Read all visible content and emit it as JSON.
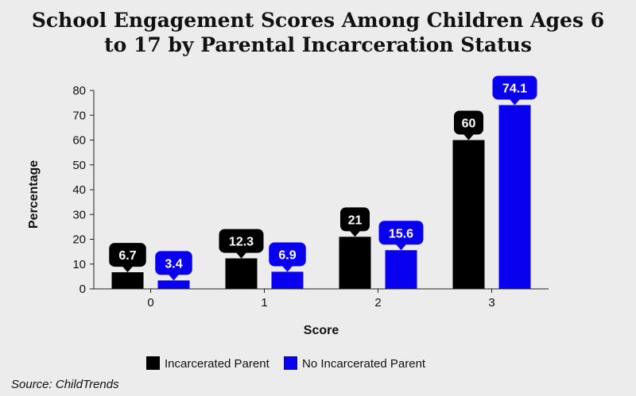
{
  "chart_data": {
    "type": "bar",
    "title": "School Engagement Scores Among Children Ages 6\nto 17 by Parental Incarceration Status",
    "xlabel": "Score",
    "ylabel": "Percentage",
    "categories": [
      "0",
      "1",
      "2",
      "3"
    ],
    "series": [
      {
        "name": "Incarcerated Parent",
        "color": "#000000",
        "values": [
          6.7,
          12.3,
          21,
          60
        ]
      },
      {
        "name": "No Incarcerated Parent",
        "color": "#0a00f0",
        "values": [
          3.4,
          6.9,
          15.6,
          74.1
        ]
      }
    ],
    "ylim": [
      0,
      80
    ],
    "yticks": [
      0,
      10,
      20,
      30,
      40,
      50,
      60,
      70,
      80
    ],
    "grid": false,
    "legend_position": "bottom"
  },
  "source": "Source: ChildTrends"
}
